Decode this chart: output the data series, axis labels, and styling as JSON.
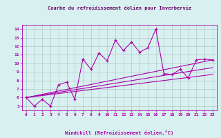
{
  "title": "Courbe du refroidissement éolien pour Inverbervie",
  "xlabel": "Windchill (Refroidissement éolien,°C)",
  "bg_color": "#d8f0f0",
  "line_color": "#aa00aa",
  "xlim": [
    -0.5,
    23.5
  ],
  "ylim": [
    4.5,
    14.5
  ],
  "xticks": [
    0,
    1,
    2,
    3,
    4,
    5,
    6,
    7,
    8,
    9,
    10,
    11,
    12,
    13,
    14,
    15,
    16,
    17,
    18,
    19,
    20,
    21,
    22,
    23
  ],
  "yticks": [
    5,
    6,
    7,
    8,
    9,
    10,
    11,
    12,
    13,
    14
  ],
  "grid_color": "#b0c8c8",
  "title_color": "#660066",
  "series": [
    {
      "x": [
        0,
        1,
        2,
        3,
        4,
        5,
        6,
        7,
        8,
        9,
        10,
        11,
        12,
        13,
        14,
        15,
        16,
        17,
        18,
        19,
        20,
        21,
        22,
        23
      ],
      "y": [
        6.0,
        5.0,
        5.8,
        5.0,
        7.5,
        7.8,
        5.8,
        10.5,
        9.3,
        11.2,
        10.3,
        12.7,
        11.5,
        12.5,
        11.3,
        11.8,
        14.0,
        8.8,
        8.7,
        9.3,
        8.3,
        10.4,
        10.5,
        10.4
      ]
    },
    {
      "x": [
        0,
        23
      ],
      "y": [
        6.0,
        10.4
      ]
    },
    {
      "x": [
        0,
        23
      ],
      "y": [
        6.0,
        9.5
      ]
    },
    {
      "x": [
        0,
        23
      ],
      "y": [
        6.0,
        8.7
      ]
    }
  ]
}
